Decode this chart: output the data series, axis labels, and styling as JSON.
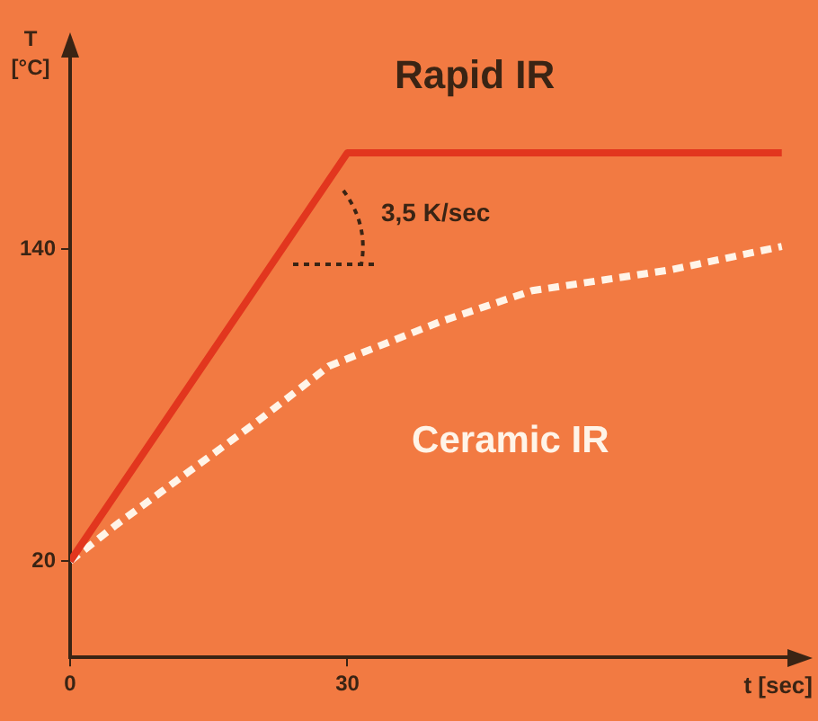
{
  "chart_data": {
    "type": "line",
    "xlabel": "t [sec]",
    "ylabel": "T [°C]",
    "xlim": [
      0,
      78
    ],
    "ylim": [
      -17,
      215
    ],
    "xticks": [
      0,
      30
    ],
    "yticks": [
      20,
      140
    ],
    "grid": false,
    "legend": false,
    "marker": "none",
    "annotations": [
      "3,5 K/sec"
    ],
    "series": [
      {
        "name": "Rapid IR",
        "color": "#e2361e",
        "line_style": "solid",
        "x": [
          0,
          30,
          77
        ],
        "values": [
          20,
          177,
          177
        ]
      },
      {
        "name": "Ceramic IR",
        "color": "#fff4e8",
        "line_style": "dashed",
        "x": [
          0,
          5,
          10,
          20,
          28,
          40,
          50,
          65,
          77
        ],
        "values": [
          20,
          34,
          47,
          73,
          95,
          112,
          124,
          132,
          141
        ]
      }
    ]
  }
}
